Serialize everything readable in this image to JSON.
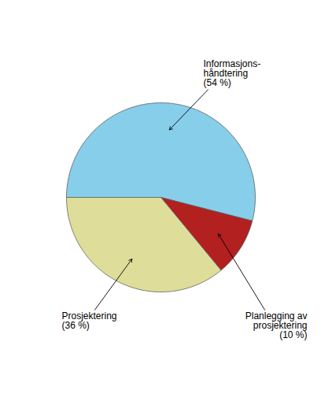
{
  "chart_data": {
    "type": "pie",
    "categories": [
      "Informasjons-\nhåndtering\n(54 %)",
      "Planlegging av\nprosjektering\n(10 %)",
      "Prosjektering\n(36 %)"
    ],
    "values": [
      54,
      10,
      36
    ],
    "colors": [
      "#87CEEB",
      "#B22020",
      "#DEDE9A"
    ]
  }
}
